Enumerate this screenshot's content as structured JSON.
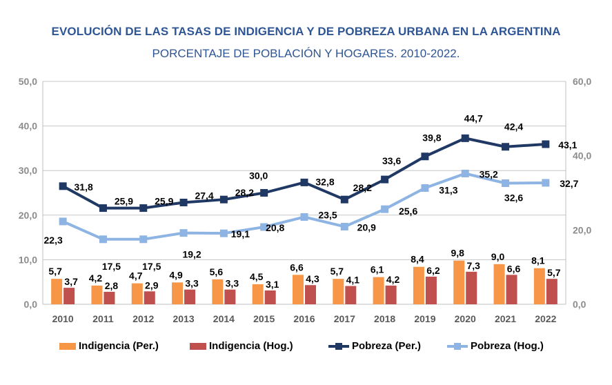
{
  "title": "EVOLUCIÓN DE LAS TASAS DE INDIGENCIA Y DE POBREZA URBANA EN LA ARGENTINA",
  "subtitle": "PORCENTAJE DE POBLACIÓN Y HOGARES. 2010-2022.",
  "colors": {
    "indigencia_per": "#f79646",
    "indigencia_hog": "#c0504d",
    "pobreza_per": "#1f3864",
    "pobreza_hog": "#8eb4e3",
    "grid": "#c6c6c6",
    "axis": "#bfbfbf"
  },
  "chart_data": {
    "type": "bar+line",
    "title": "EVOLUCIÓN DE LAS TASAS DE INDIGENCIA Y DE POBREZA URBANA EN LA ARGENTINA",
    "subtitle": "PORCENTAJE DE POBLACIÓN Y HOGARES. 2010-2022.",
    "categories": [
      "2010",
      "2011",
      "2012",
      "2013",
      "2014",
      "2015",
      "2016",
      "2017",
      "2018",
      "2019",
      "2020",
      "2021",
      "2022"
    ],
    "left_axis": {
      "ylim": [
        0,
        50
      ],
      "ticks": [
        "0,0",
        "10,0",
        "20,0",
        "30,0",
        "40,0",
        "50,0"
      ]
    },
    "right_axis": {
      "ylim": [
        0,
        60
      ],
      "ticks": [
        "0,0",
        "20,0",
        "40,0",
        "60,0"
      ]
    },
    "grid": true,
    "legend_position": "bottom",
    "series": [
      {
        "name": "Indigencia (Per.)",
        "kind": "bar",
        "axis": "left",
        "values": [
          5.7,
          4.2,
          4.7,
          4.9,
          5.6,
          4.5,
          6.6,
          5.7,
          6.1,
          8.4,
          9.8,
          9.0,
          8.1
        ],
        "labels": [
          "5,7",
          "4,2",
          "4,7",
          "4,9",
          "5,6",
          "4,5",
          "6,6",
          "5,7",
          "6,1",
          "8,4",
          "9,8",
          "9,0",
          "8,1"
        ]
      },
      {
        "name": "Indigencia (Hog.)",
        "kind": "bar",
        "axis": "left",
        "values": [
          3.7,
          2.8,
          2.9,
          3.3,
          3.3,
          3.1,
          4.3,
          4.1,
          4.2,
          6.2,
          7.3,
          6.6,
          5.7
        ],
        "labels": [
          "3,7",
          "2,8",
          "2,9",
          "3,3",
          "3,3",
          "3,1",
          "4,3",
          "4,1",
          "4,2",
          "6,2",
          "7,3",
          "6,6",
          "5,7"
        ]
      },
      {
        "name": "Pobreza (Per.)",
        "kind": "line",
        "axis": "right",
        "values": [
          31.8,
          25.9,
          25.9,
          27.4,
          28.2,
          30.0,
          32.8,
          28.2,
          33.6,
          39.8,
          44.7,
          42.4,
          43.1
        ],
        "labels": [
          "31,8",
          "25,9",
          "25,9",
          "27,4",
          "28,2",
          "30,0",
          "32,8",
          "28,2",
          "33,6",
          "39,8",
          "44,7",
          "42,4",
          "43,1"
        ]
      },
      {
        "name": "Pobreza (Hog.)",
        "kind": "line",
        "axis": "right",
        "values": [
          22.3,
          17.5,
          17.5,
          19.2,
          19.1,
          20.8,
          23.5,
          20.9,
          25.6,
          31.3,
          35.2,
          32.6,
          32.7
        ],
        "labels": [
          "22,3",
          "17,5",
          "17,5",
          "19,2",
          "19,1",
          "20,8",
          "23,5",
          "20,9",
          "25,6",
          "31,3",
          "35,2",
          "32,6",
          "32,7"
        ]
      }
    ]
  },
  "legend": {
    "items": [
      {
        "label": "Indigencia (Per.)",
        "icon": "bar-swatch"
      },
      {
        "label": "Indigencia (Hog.)",
        "icon": "bar-swatch"
      },
      {
        "label": "Pobreza (Per.)",
        "icon": "line-marker-swatch"
      },
      {
        "label": "Pobreza (Hog.)",
        "icon": "line-marker-swatch"
      }
    ]
  }
}
